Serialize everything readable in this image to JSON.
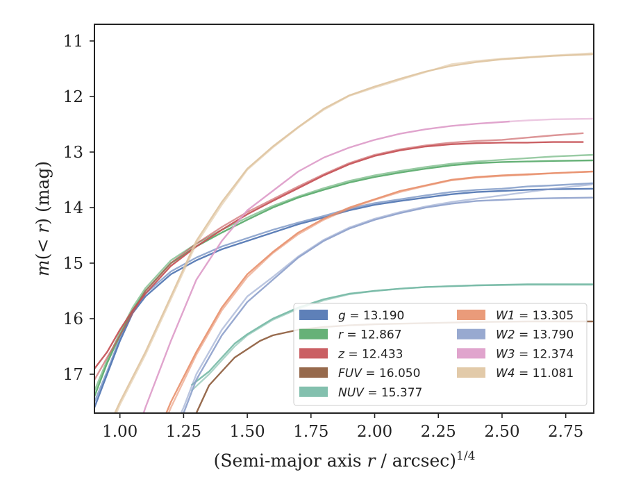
{
  "chart_data": {
    "type": "line",
    "xlabel_main": "(Semi-major axis ",
    "xlabel_var": "r",
    "xlabel_mid": " / arcsec)",
    "xlabel_sup": "1/4",
    "ylabel_pre": "m",
    "ylabel_mid": "(< ",
    "ylabel_var": "r",
    "ylabel_post": ") (mag)",
    "xlim": [
      0.9,
      2.86
    ],
    "ylim": [
      17.7,
      10.7
    ],
    "y_inverted": true,
    "grid": false,
    "legend_location": "lower-right",
    "x_ticks": [
      1.0,
      1.25,
      1.5,
      1.75,
      2.0,
      2.25,
      2.5,
      2.75
    ],
    "x_tick_labels": [
      "1.00",
      "1.25",
      "1.50",
      "1.75",
      "2.00",
      "2.25",
      "2.50",
      "2.75"
    ],
    "y_ticks": [
      11,
      12,
      13,
      14,
      15,
      16,
      17
    ],
    "y_tick_labels": [
      "11",
      "12",
      "13",
      "14",
      "15",
      "16",
      "17"
    ],
    "series": [
      {
        "name": "g",
        "value": "13.190",
        "color": "#4c72b0",
        "x": [
          0.9,
          0.95,
          1.0,
          1.05,
          1.1,
          1.2,
          1.3,
          1.4,
          1.5,
          1.6,
          1.7,
          1.8,
          1.9,
          2.0,
          2.1,
          2.2,
          2.3,
          2.4,
          2.5,
          2.6,
          2.7,
          2.86
        ],
        "y": [
          17.6,
          17.0,
          16.4,
          15.9,
          15.6,
          15.2,
          14.95,
          14.75,
          14.6,
          14.45,
          14.3,
          14.18,
          14.05,
          13.95,
          13.88,
          13.82,
          13.76,
          13.72,
          13.7,
          13.68,
          13.67,
          13.66
        ],
        "y2": [
          17.5,
          16.95,
          16.35,
          15.85,
          15.55,
          15.15,
          14.9,
          14.7,
          14.55,
          14.4,
          14.27,
          14.15,
          14.02,
          13.92,
          13.85,
          13.78,
          13.72,
          13.68,
          13.66,
          13.62,
          13.6,
          13.56
        ]
      },
      {
        "name": "r",
        "value": "12.867",
        "color": "#55a868",
        "x": [
          0.9,
          0.95,
          1.0,
          1.05,
          1.1,
          1.2,
          1.3,
          1.4,
          1.5,
          1.6,
          1.7,
          1.8,
          1.9,
          2.0,
          2.1,
          2.2,
          2.3,
          2.4,
          2.5,
          2.6,
          2.7,
          2.86
        ],
        "y": [
          17.4,
          16.8,
          16.3,
          15.85,
          15.5,
          15.0,
          14.7,
          14.45,
          14.22,
          14.0,
          13.82,
          13.68,
          13.55,
          13.45,
          13.37,
          13.3,
          13.24,
          13.2,
          13.18,
          13.17,
          13.16,
          13.15
        ],
        "y2": [
          17.3,
          16.75,
          16.25,
          15.8,
          15.45,
          14.95,
          14.65,
          14.4,
          14.18,
          13.97,
          13.8,
          13.65,
          13.52,
          13.42,
          13.34,
          13.27,
          13.21,
          13.17,
          13.14,
          13.11,
          13.08,
          13.05
        ]
      },
      {
        "name": "z",
        "value": "12.433",
        "color": "#c44e52",
        "x": [
          0.9,
          0.95,
          1.0,
          1.05,
          1.1,
          1.2,
          1.3,
          1.4,
          1.5,
          1.6,
          1.7,
          1.8,
          1.9,
          2.0,
          2.1,
          2.2,
          2.3,
          2.4,
          2.5,
          2.6,
          2.7,
          2.82
        ],
        "y": [
          16.9,
          16.6,
          16.2,
          15.85,
          15.55,
          15.05,
          14.7,
          14.4,
          14.12,
          13.88,
          13.65,
          13.42,
          13.22,
          13.07,
          12.97,
          12.9,
          12.86,
          12.84,
          12.83,
          12.83,
          12.82,
          12.82
        ],
        "y2": [
          17.1,
          16.7,
          16.3,
          15.9,
          15.5,
          15.0,
          14.65,
          14.35,
          14.08,
          13.85,
          13.62,
          13.4,
          13.2,
          13.05,
          12.95,
          12.88,
          12.83,
          12.8,
          12.78,
          12.74,
          12.7,
          12.66
        ]
      },
      {
        "name": "FUV",
        "value": "16.050",
        "color": "#8c5a3a",
        "x": [
          1.3,
          1.35,
          1.4,
          1.45,
          1.5,
          1.55,
          1.6,
          1.7,
          1.8,
          1.9,
          2.0,
          2.2,
          2.4,
          2.6,
          2.86
        ],
        "y": [
          17.7,
          17.2,
          16.95,
          16.7,
          16.55,
          16.4,
          16.3,
          16.2,
          16.15,
          16.12,
          16.1,
          16.08,
          16.06,
          16.05,
          16.05
        ]
      },
      {
        "name": "NUV",
        "value": "15.377",
        "color": "#76b9a5",
        "x": [
          1.28,
          1.35,
          1.4,
          1.45,
          1.5,
          1.6,
          1.7,
          1.8,
          1.9,
          2.0,
          2.1,
          2.2,
          2.4,
          2.6,
          2.86
        ],
        "y": [
          17.2,
          16.95,
          16.7,
          16.45,
          16.28,
          16.0,
          15.8,
          15.65,
          15.55,
          15.5,
          15.46,
          15.43,
          15.4,
          15.38,
          15.38
        ],
        "y2": [
          17.3,
          17.0,
          16.75,
          16.5,
          16.3,
          16.02,
          15.82,
          15.67,
          15.56,
          15.5,
          15.46,
          15.43,
          15.4,
          15.39,
          15.39
        ]
      },
      {
        "name": "W1",
        "value": "13.305",
        "color": "#e8906c",
        "x": [
          1.1,
          1.2,
          1.3,
          1.4,
          1.5,
          1.6,
          1.7,
          1.8,
          1.9,
          2.0,
          2.1,
          2.2,
          2.3,
          2.4,
          2.5,
          2.6,
          2.7,
          2.86
        ],
        "y": [
          18.6,
          17.5,
          16.6,
          15.8,
          15.2,
          14.8,
          14.45,
          14.2,
          14.0,
          13.85,
          13.7,
          13.6,
          13.5,
          13.45,
          13.42,
          13.4,
          13.38,
          13.35
        ],
        "y2": [
          18.7,
          17.6,
          16.65,
          15.85,
          15.25,
          14.82,
          14.48,
          14.22,
          14.02,
          13.86,
          13.72,
          13.61,
          13.51,
          13.46,
          13.43,
          13.41,
          13.38,
          13.35
        ]
      },
      {
        "name": "W2",
        "value": "13.790",
        "color": "#8da0cb",
        "x": [
          1.18,
          1.25,
          1.3,
          1.4,
          1.5,
          1.6,
          1.7,
          1.8,
          1.9,
          2.0,
          2.1,
          2.2,
          2.3,
          2.4,
          2.5,
          2.6,
          2.7,
          2.86
        ],
        "y": [
          18.4,
          17.7,
          17.1,
          16.3,
          15.7,
          15.3,
          14.9,
          14.6,
          14.38,
          14.22,
          14.1,
          14.0,
          13.93,
          13.88,
          13.86,
          13.84,
          13.83,
          13.82
        ],
        "y2": [
          18.3,
          17.6,
          17.0,
          16.2,
          15.6,
          15.25,
          14.88,
          14.58,
          14.36,
          14.2,
          14.08,
          13.98,
          13.9,
          13.84,
          13.78,
          13.72,
          13.66,
          13.58
        ]
      },
      {
        "name": "W3",
        "value": "12.374",
        "color": "#dd9ac8",
        "x": [
          1.0,
          1.1,
          1.2,
          1.3,
          1.4,
          1.5,
          1.6,
          1.7,
          1.8,
          1.9,
          2.0,
          2.1,
          2.2,
          2.3,
          2.4,
          2.53
        ],
        "y": [
          19.0,
          17.6,
          16.4,
          15.3,
          14.6,
          14.05,
          13.7,
          13.35,
          13.1,
          12.92,
          12.78,
          12.67,
          12.59,
          12.53,
          12.49,
          12.45
        ],
        "ext_x": [
          2.53,
          2.6,
          2.7,
          2.86
        ],
        "ext_y": [
          12.45,
          12.43,
          12.41,
          12.4
        ]
      },
      {
        "name": "W4",
        "value": "11.081",
        "color": "#dfc4a0",
        "x": [
          0.95,
          1.0,
          1.1,
          1.2,
          1.3,
          1.4,
          1.5,
          1.6,
          1.7,
          1.8,
          1.9,
          2.0,
          2.1,
          2.2,
          2.3,
          2.4,
          2.5,
          2.6,
          2.7,
          2.86
        ],
        "y": [
          18.0,
          17.5,
          16.6,
          15.6,
          14.6,
          13.9,
          13.3,
          12.9,
          12.55,
          12.22,
          11.98,
          11.82,
          11.68,
          11.55,
          11.45,
          11.38,
          11.33,
          11.3,
          11.27,
          11.24
        ],
        "y2": [
          18.1,
          17.55,
          16.65,
          15.65,
          14.65,
          13.95,
          13.32,
          12.92,
          12.56,
          12.24,
          11.99,
          11.84,
          11.7,
          11.56,
          11.42,
          11.36,
          11.32,
          11.29,
          11.26,
          11.22
        ]
      }
    ],
    "legend": [
      {
        "name": "g",
        "value": "13.190"
      },
      {
        "name": "r",
        "value": "12.867"
      },
      {
        "name": "z",
        "value": "12.433"
      },
      {
        "name": "FUV",
        "value": "16.050"
      },
      {
        "name": "NUV",
        "value": "15.377"
      },
      {
        "name": "W1",
        "value": "13.305"
      },
      {
        "name": "W2",
        "value": "13.790"
      },
      {
        "name": "W3",
        "value": "12.374"
      },
      {
        "name": "W4",
        "value": "11.081"
      }
    ]
  }
}
